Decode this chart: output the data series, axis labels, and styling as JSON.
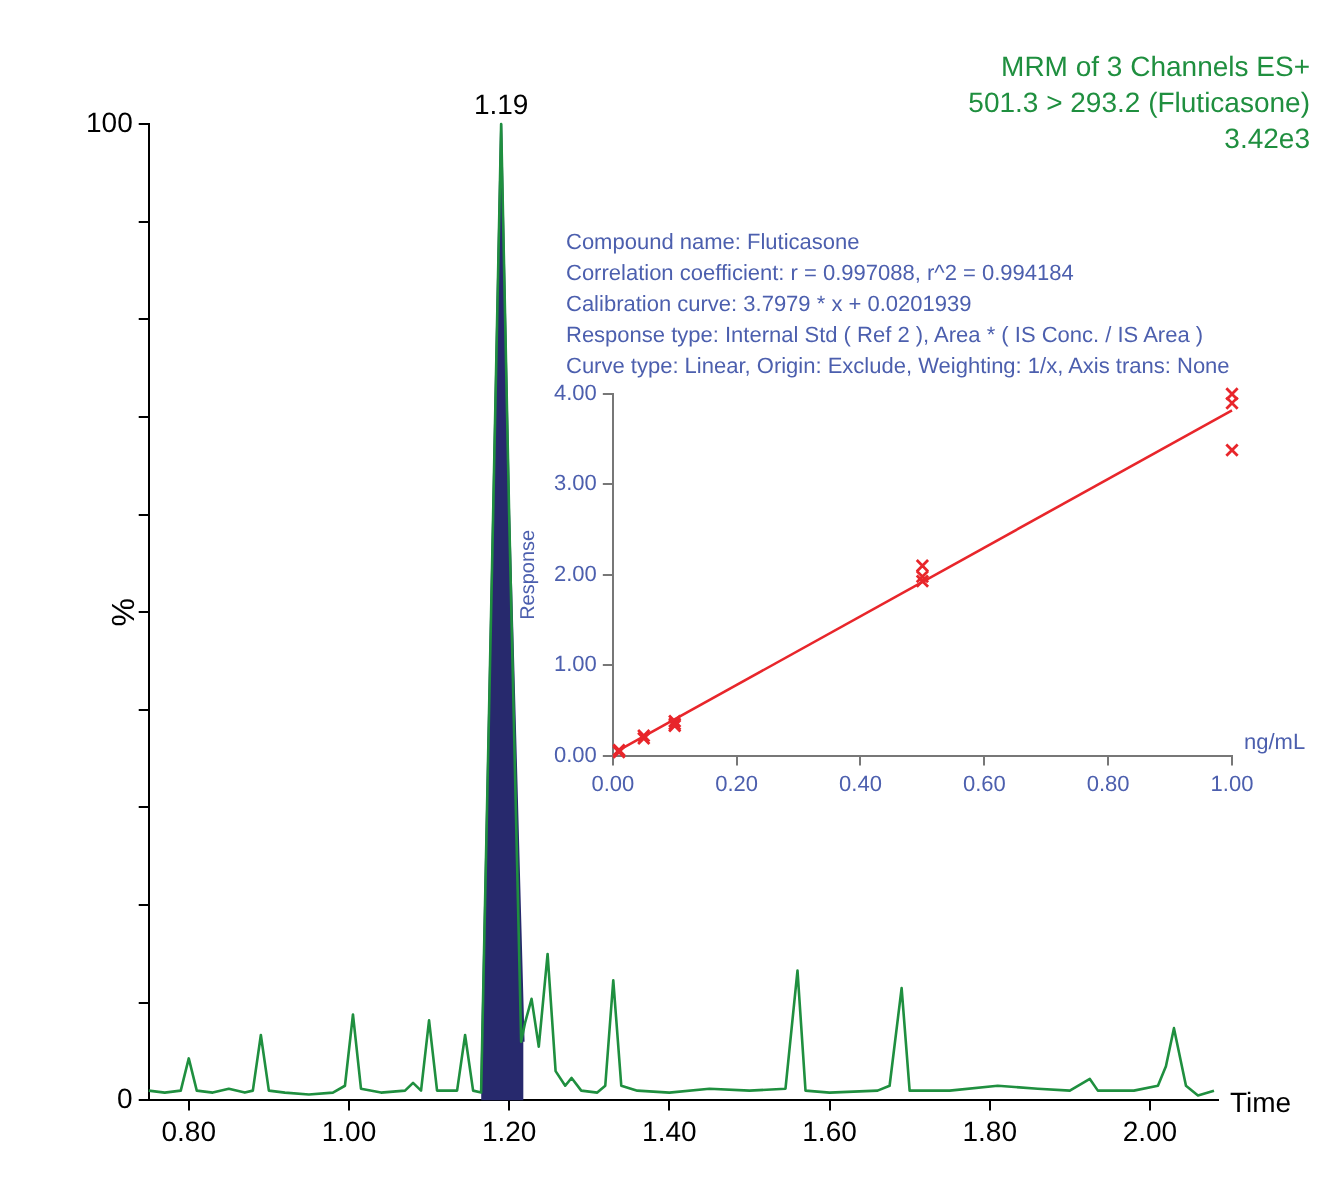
{
  "chart_data": [
    {
      "type": "line",
      "xlabel": "Time",
      "ylabel": "%",
      "xlim": [
        0.75,
        2.085
      ],
      "ylim": [
        0,
        100
      ],
      "xticks": [
        {
          "value": 0.8,
          "label": "0.80"
        },
        {
          "value": 1.0,
          "label": "1.00"
        },
        {
          "value": 1.2,
          "label": "1.20"
        },
        {
          "value": 1.4,
          "label": "1.40"
        },
        {
          "value": 1.6,
          "label": "1.60"
        },
        {
          "value": 1.8,
          "label": "1.80"
        },
        {
          "value": 2.0,
          "label": "2.00"
        }
      ],
      "yticks": [
        0,
        {
          "value": 10,
          "label": null
        },
        {
          "value": 20,
          "label": null
        },
        {
          "value": 30,
          "label": null
        },
        {
          "value": 40,
          "label": null
        },
        {
          "value": 50,
          "label": null
        },
        {
          "value": 60,
          "label": null
        },
        {
          "value": 70,
          "label": null
        },
        {
          "value": 80,
          "label": null
        },
        {
          "value": 90,
          "label": null
        },
        100
      ],
      "grid": false,
      "legend": false,
      "annotations": [
        {
          "text": "1.19",
          "x": 1.19,
          "y": 100
        },
        "MRM of 3 Channels ES+",
        "501.3 > 293.2 (Fluticasone)",
        "3.42e3"
      ],
      "series": [
        {
          "type": "area",
          "color": "#27296d",
          "x": [
            1.165,
            1.18,
            1.19,
            1.2,
            1.218
          ],
          "values": [
            0.8,
            60,
            100,
            60,
            6
          ]
        },
        {
          "color": "#1f8f3f",
          "x": [
            0.75,
            0.77,
            0.79,
            0.8,
            0.81,
            0.83,
            0.85,
            0.87,
            0.88,
            0.89,
            0.9,
            0.92,
            0.95,
            0.98,
            0.995,
            1.005,
            1.015,
            1.04,
            1.07,
            1.08,
            1.09,
            1.1,
            1.11,
            1.135,
            1.145,
            1.155,
            1.165,
            1.18,
            1.19,
            1.2,
            1.215,
            1.22,
            1.228,
            1.237,
            1.248,
            1.258,
            1.27,
            1.278,
            1.29,
            1.31,
            1.32,
            1.33,
            1.34,
            1.36,
            1.4,
            1.45,
            1.5,
            1.545,
            1.56,
            1.57,
            1.6,
            1.66,
            1.675,
            1.69,
            1.7,
            1.75,
            1.81,
            1.86,
            1.9,
            1.925,
            1.935,
            1.98,
            2.01,
            2.02,
            2.03,
            2.045,
            2.06,
            2.08
          ],
          "values": [
            1,
            0.8,
            1,
            4.3,
            1,
            0.8,
            1.2,
            0.8,
            1,
            6.7,
            1,
            0.8,
            0.6,
            0.8,
            1.5,
            8.8,
            1.2,
            0.8,
            1,
            1.8,
            1,
            8.2,
            1,
            1,
            6.7,
            1,
            0.8,
            60,
            100,
            60,
            6,
            8,
            10.4,
            5.5,
            15,
            3,
            1.5,
            2.3,
            1,
            0.8,
            1.5,
            12.3,
            1.5,
            1,
            0.8,
            1.2,
            1,
            1.2,
            13.3,
            1,
            0.8,
            1,
            1.5,
            11.5,
            1,
            1,
            1.5,
            1.2,
            1,
            2.2,
            1,
            1,
            1.5,
            3.5,
            7.4,
            1.5,
            0.5,
            1
          ]
        }
      ]
    },
    {
      "type": "scatter",
      "xlabel": "ng/mL",
      "ylabel": "Response",
      "xlim": [
        0,
        1.0
      ],
      "ylim": [
        0,
        4.0
      ],
      "xticks": [
        {
          "value": 0,
          "label": "0.00"
        },
        {
          "value": 0.2,
          "label": "0.20"
        },
        {
          "value": 0.4,
          "label": "0.40"
        },
        {
          "value": 0.6,
          "label": "0.60"
        },
        {
          "value": 0.8,
          "label": "0.80"
        },
        {
          "value": 1.0,
          "label": "1.00"
        }
      ],
      "yticks": [
        {
          "value": 0,
          "label": "0.00"
        },
        {
          "value": 1,
          "label": "1.00"
        },
        {
          "value": 2,
          "label": "2.00"
        },
        {
          "value": 3,
          "label": "3.00"
        },
        {
          "value": 4,
          "label": "4.00"
        }
      ],
      "grid": false,
      "legend": false,
      "annotations": [
        "Compound name: Fluticasone",
        "Correlation coefficient: r = 0.997088, r^2 = 0.994184",
        "Calibration curve: 3.7979 * x + 0.0201939",
        "Response type: Internal Std ( Ref 2 ), Area * ( IS Conc. / IS Area )",
        "Curve type: Linear, Origin: Exclude, Weighting: 1/x, Axis trans: None"
      ],
      "series": [
        {
          "color": "#e8262b",
          "marker": "cross",
          "x": [
            0.01,
            0.01,
            0.05,
            0.05,
            0.1,
            0.1,
            0.1,
            0.5,
            0.5,
            0.5,
            1.0,
            1.0,
            1.0
          ],
          "values": [
            0.06,
            0.04,
            0.22,
            0.19,
            0.38,
            0.35,
            0.33,
            2.1,
            1.98,
            1.93,
            4.0,
            3.9,
            3.38
          ]
        },
        {
          "type": "line",
          "color": "#e8262b",
          "x": [
            0.01,
            1.0
          ],
          "values": [
            0.06,
            3.82
          ]
        }
      ]
    }
  ]
}
